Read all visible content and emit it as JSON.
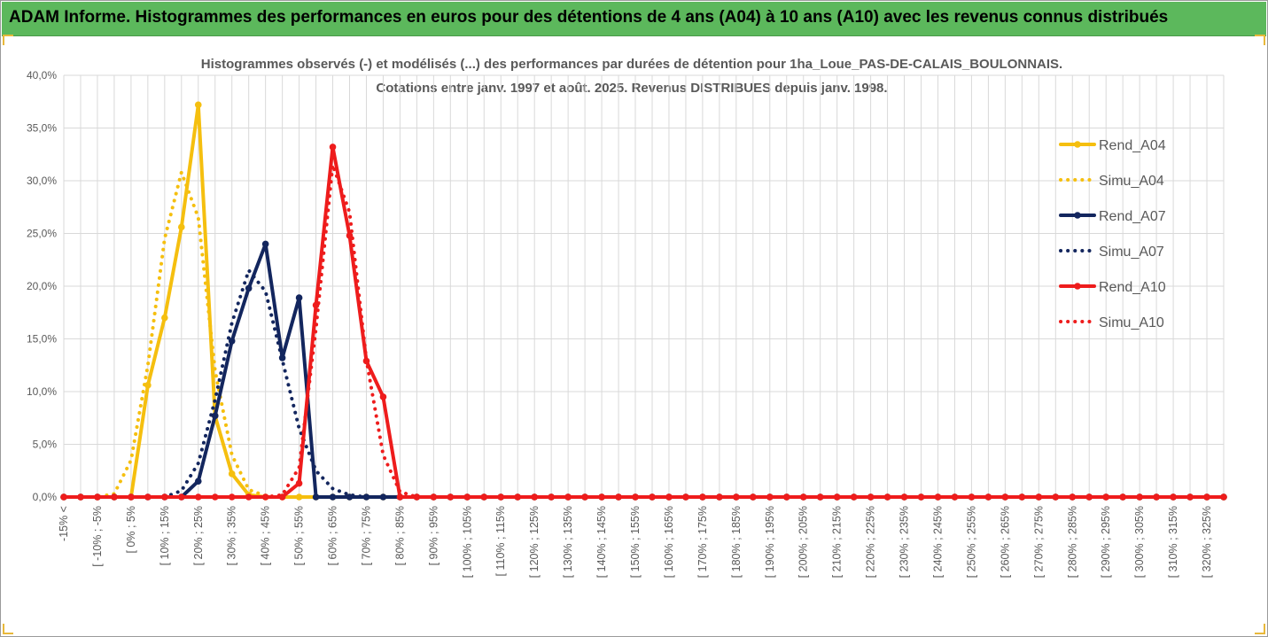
{
  "header": {
    "title": "ADAM Informe. Histogrammes des performances en euros pour des détentions de 4 ans (A04) à 10 ans (A10) avec les revenus connus distribués"
  },
  "chart_data": {
    "type": "line",
    "title_line1": "Histogrammes observés (-) et modélisés (...) des performances par durées de détention pour 1ha_Loue_PAS-DE-CALAIS_BOULONNAIS.",
    "title_line2": "Cotations entre janv. 1997 et août. 2025. Revenus DISTRIBUES depuis janv. 1998.",
    "ylim": [
      0,
      40
    ],
    "y_ticks": [
      "0,0%",
      "5,0%",
      "10,0%",
      "15,0%",
      "20,0%",
      "25,0%",
      "30,0%",
      "35,0%",
      "40,0%"
    ],
    "grid": true,
    "legend_position": "right",
    "x_labels": [
      "-15% <",
      "",
      "[ -10% ; -5%",
      "",
      "[ 0% ; 5%",
      "",
      "[ 10% ; 15%",
      "",
      "[ 20% ; 25%",
      "",
      "[ 30% ; 35%",
      "",
      "[ 40% ; 45%",
      "",
      "[ 50% ; 55%",
      "",
      "[ 60% ; 65%",
      "",
      "[ 70% ; 75%",
      "",
      "[ 80% ; 85%",
      "",
      "[ 90% ; 95%",
      "",
      "[ 100% ; 105%",
      "",
      "[ 110% ; 115%",
      "",
      "[ 120% ; 125%",
      "",
      "[ 130% ; 135%",
      "",
      "[ 140% ; 145%",
      "",
      "[ 150% ; 155%",
      "",
      "[ 160% ; 165%",
      "",
      "[ 170% ; 175%",
      "",
      "[ 180% ; 185%",
      "",
      "[ 190% ; 195%",
      "",
      "[ 200% ; 205%",
      "",
      "[ 210% ; 215%",
      "",
      "[ 220% ; 225%",
      "",
      "[ 230% ; 235%",
      "",
      "[ 240% ; 245%",
      "",
      "[ 250% ; 255%",
      "",
      "[ 260% ; 265%",
      "",
      "[ 270% ; 275%",
      "",
      "[ 280% ; 285%",
      "",
      "[ 290% ; 295%",
      "",
      "[ 300% ; 305%",
      "",
      "[ 310% ; 315%",
      "",
      "[ 320% ; 325%",
      ""
    ],
    "series": [
      {
        "name": "Rend_A04",
        "color": "#f5bf0f",
        "dashed": false,
        "markers": true,
        "values": [
          0,
          0,
          0,
          0,
          0,
          10.6,
          17,
          25.6,
          37.2,
          7.7,
          2.2,
          0.2,
          0,
          0,
          0
        ]
      },
      {
        "name": "Simu_A04",
        "color": "#f5bf0f",
        "dashed": true,
        "markers": false,
        "values": [
          0,
          0,
          0,
          0.3,
          3.5,
          12.5,
          24.5,
          30.8,
          26.5,
          12,
          4,
          0.7,
          0.1,
          0,
          0
        ]
      },
      {
        "name": "Rend_A07",
        "color": "#13265e",
        "dashed": false,
        "markers": true,
        "values": [
          0,
          0,
          0,
          0,
          0,
          0,
          0,
          0,
          1.5,
          7.7,
          14.8,
          19.8,
          24,
          13.2,
          18.9,
          0,
          0,
          0,
          0,
          0,
          0
        ]
      },
      {
        "name": "Simu_A07",
        "color": "#13265e",
        "dashed": true,
        "markers": false,
        "values": [
          0,
          0,
          0,
          0,
          0,
          0,
          0,
          0.6,
          3.2,
          9.2,
          16.5,
          21.5,
          19.5,
          13,
          6.5,
          2.5,
          0.8,
          0.2,
          0,
          0,
          0
        ]
      },
      {
        "name": "Rend_A10",
        "color": "#ee1c1c",
        "dashed": false,
        "markers": true,
        "values": [
          0,
          0,
          0,
          0,
          0,
          0,
          0,
          0,
          0,
          0,
          0,
          0,
          0,
          0,
          1.3,
          18.2,
          33.2,
          24.8,
          12.9,
          9.5,
          0
        ]
      },
      {
        "name": "Simu_A10",
        "color": "#ee1c1c",
        "dashed": true,
        "markers": false,
        "values": [
          0,
          0,
          0,
          0,
          0,
          0,
          0,
          0,
          0,
          0,
          0,
          0,
          0,
          0.2,
          2.8,
          16,
          31.5,
          27,
          13,
          4,
          0.5
        ]
      }
    ]
  }
}
